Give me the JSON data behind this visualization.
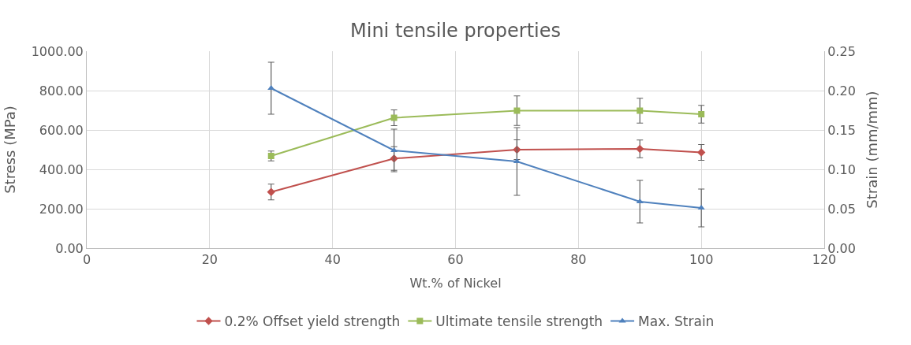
{
  "chart_data": {
    "type": "line",
    "title": "Mini tensile properties",
    "xlabel": "Wt.% of Nickel",
    "ylabel": "Stress (MPa)",
    "y2label": "Strain (mm/mm)",
    "x": [
      30,
      50,
      70,
      90,
      100
    ],
    "series": [
      {
        "name": "0.2% Offset yield strength",
        "color": "#c0504d",
        "marker": "diamond",
        "values": [
          285,
          455,
          500,
          504,
          486
        ],
        "errors": [
          40,
          60,
          50,
          45,
          40
        ]
      },
      {
        "name": "Ultimate tensile strength",
        "color": "#9bbb59",
        "marker": "square",
        "values": [
          468,
          662,
          698,
          698,
          680
        ],
        "errors": [
          25,
          40,
          75,
          63,
          45
        ]
      },
      {
        "name": "Max. Strain",
        "color": "#4f81bd",
        "marker": "triangle",
        "axis": "y2",
        "values": [
          0.203,
          0.124,
          0.11,
          0.059,
          0.051
        ],
        "errors": [
          0.033,
          0.027,
          0.043,
          0.027,
          0.024
        ]
      }
    ],
    "xlim": [
      0,
      120
    ],
    "xticks": [
      0,
      20,
      40,
      60,
      80,
      100,
      120
    ],
    "ylim": [
      0,
      1000
    ],
    "yticks": [
      {
        "value": 0,
        "label": "0.00"
      },
      {
        "value": 200,
        "label": "200.00"
      },
      {
        "value": 400,
        "label": "400.00"
      },
      {
        "value": 600,
        "label": "600.00"
      },
      {
        "value": 800,
        "label": "800.00"
      },
      {
        "value": 1000,
        "label": "1000.00"
      }
    ],
    "y2lim": [
      0,
      0.25
    ],
    "y2ticks": [
      {
        "value": 0,
        "label": "0.00"
      },
      {
        "value": 0.05,
        "label": "0.05"
      },
      {
        "value": 0.1,
        "label": "0.10"
      },
      {
        "value": 0.15,
        "label": "0.15"
      },
      {
        "value": 0.2,
        "label": "0.20"
      },
      {
        "value": 0.25,
        "label": "0.25"
      }
    ],
    "grid": true,
    "legend": "bottom"
  }
}
